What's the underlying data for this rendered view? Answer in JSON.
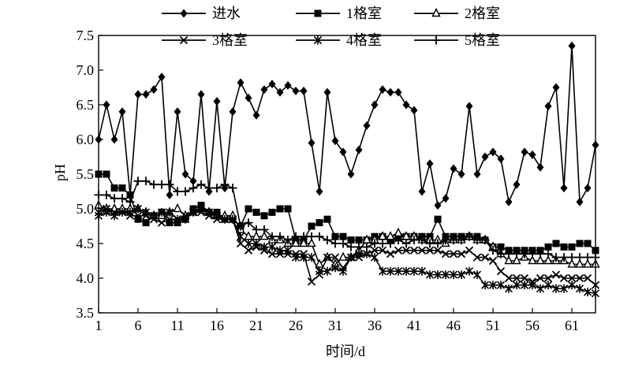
{
  "chart_data": {
    "type": "line",
    "title": "",
    "xlabel": "时间/d",
    "ylabel": "pH",
    "xlim": [
      1,
      64
    ],
    "ylim": [
      3.5,
      7.5
    ],
    "x_ticks": [
      1,
      6,
      11,
      16,
      21,
      26,
      31,
      36,
      41,
      46,
      51,
      56,
      61
    ],
    "y_ticks": [
      "3.5",
      "4.0",
      "4.5",
      "5.0",
      "5.5",
      "6.0",
      "6.5",
      "7.0",
      "7.5"
    ],
    "grid": false,
    "legend_position": "top",
    "x": [
      1,
      2,
      3,
      4,
      5,
      6,
      7,
      8,
      9,
      10,
      11,
      12,
      13,
      14,
      15,
      16,
      17,
      18,
      19,
      20,
      21,
      22,
      23,
      24,
      25,
      26,
      27,
      28,
      29,
      30,
      31,
      32,
      33,
      34,
      35,
      36,
      37,
      38,
      39,
      40,
      41,
      42,
      43,
      44,
      45,
      46,
      47,
      48,
      49,
      50,
      51,
      52,
      53,
      54,
      55,
      56,
      57,
      58,
      59,
      60,
      61,
      62,
      63,
      64
    ],
    "series": [
      {
        "name": "进水",
        "marker": "diamond",
        "values": [
          6.0,
          6.5,
          6.0,
          6.4,
          5.2,
          6.65,
          6.65,
          6.72,
          6.9,
          5.2,
          6.4,
          5.5,
          5.4,
          6.65,
          5.25,
          6.55,
          5.3,
          6.4,
          6.82,
          6.6,
          6.35,
          6.72,
          6.8,
          6.68,
          6.78,
          6.7,
          6.7,
          5.95,
          5.25,
          6.68,
          5.98,
          5.82,
          5.5,
          5.85,
          6.2,
          6.5,
          6.72,
          6.68,
          6.68,
          6.5,
          6.42,
          5.25,
          5.65,
          5.05,
          5.15,
          5.58,
          5.5,
          6.48,
          5.5,
          5.75,
          5.82,
          5.72,
          5.1,
          5.35,
          5.82,
          5.78,
          5.6,
          6.48,
          6.75,
          5.3,
          7.35,
          5.1,
          5.3,
          5.92
        ]
      },
      {
        "name": "1格室",
        "marker": "square",
        "values": [
          5.5,
          5.5,
          5.3,
          5.3,
          5.2,
          4.85,
          4.8,
          4.9,
          4.95,
          4.8,
          4.8,
          4.85,
          5.0,
          5.05,
          4.95,
          4.95,
          4.85,
          4.85,
          4.75,
          5.0,
          4.95,
          4.9,
          4.95,
          5.0,
          5.0,
          4.55,
          4.55,
          4.75,
          4.8,
          4.85,
          4.6,
          4.6,
          4.55,
          4.55,
          4.55,
          4.6,
          4.6,
          4.55,
          4.6,
          4.6,
          4.6,
          4.6,
          4.6,
          4.85,
          4.6,
          4.6,
          4.6,
          4.6,
          4.6,
          4.55,
          4.45,
          4.45,
          4.4,
          4.4,
          4.4,
          4.4,
          4.4,
          4.45,
          4.5,
          4.45,
          4.45,
          4.5,
          4.5,
          4.4
        ]
      },
      {
        "name": "2格室",
        "marker": "triangle",
        "values": [
          5.05,
          5.0,
          5.0,
          5.0,
          5.0,
          5.0,
          4.95,
          4.9,
          4.9,
          4.95,
          5.0,
          4.9,
          4.95,
          5.0,
          4.95,
          4.9,
          4.9,
          4.9,
          4.7,
          4.6,
          4.6,
          4.6,
          4.55,
          4.55,
          4.5,
          4.5,
          4.5,
          4.5,
          4.2,
          4.3,
          4.2,
          4.3,
          4.3,
          4.4,
          4.55,
          4.55,
          4.6,
          4.6,
          4.65,
          4.6,
          4.6,
          4.55,
          4.55,
          4.55,
          4.5,
          4.55,
          4.55,
          4.6,
          4.55,
          4.55,
          4.45,
          4.35,
          4.25,
          4.25,
          4.3,
          4.25,
          4.25,
          4.25,
          4.25,
          4.25,
          4.2,
          4.2,
          4.2,
          4.2
        ]
      },
      {
        "name": "3格室",
        "marker": "x",
        "values": [
          4.95,
          5.0,
          4.95,
          4.95,
          4.9,
          4.9,
          4.9,
          4.85,
          4.8,
          4.85,
          4.85,
          4.9,
          4.95,
          4.95,
          4.9,
          4.85,
          4.85,
          4.85,
          4.5,
          4.4,
          4.45,
          4.4,
          4.35,
          4.35,
          4.35,
          4.35,
          4.35,
          3.95,
          4.05,
          4.3,
          4.3,
          4.15,
          4.3,
          4.3,
          4.35,
          4.4,
          4.4,
          4.35,
          4.4,
          4.4,
          4.4,
          4.4,
          4.4,
          4.4,
          4.35,
          4.35,
          4.35,
          4.4,
          4.3,
          4.3,
          4.25,
          4.1,
          4.0,
          4.0,
          4.0,
          3.95,
          4.0,
          4.0,
          4.05,
          4.0,
          4.0,
          4.0,
          4.0,
          3.9
        ]
      },
      {
        "name": "4格室",
        "marker": "asterisk",
        "values": [
          4.9,
          4.95,
          4.9,
          4.95,
          4.95,
          5.0,
          4.95,
          4.9,
          4.95,
          4.95,
          4.85,
          4.85,
          4.95,
          5.0,
          4.95,
          4.9,
          4.85,
          4.85,
          4.6,
          4.5,
          4.5,
          4.45,
          4.45,
          4.4,
          4.4,
          4.3,
          4.3,
          4.3,
          4.1,
          4.1,
          4.15,
          4.1,
          4.3,
          4.35,
          4.35,
          4.3,
          4.1,
          4.1,
          4.1,
          4.1,
          4.1,
          4.1,
          4.05,
          4.05,
          4.05,
          4.05,
          4.05,
          4.1,
          4.05,
          3.9,
          3.9,
          3.9,
          3.85,
          3.9,
          3.9,
          3.9,
          3.85,
          3.9,
          3.85,
          3.85,
          3.9,
          3.85,
          3.8,
          3.78
        ]
      },
      {
        "name": "5格室",
        "marker": "plus",
        "values": [
          5.2,
          5.2,
          5.15,
          5.15,
          5.1,
          5.4,
          5.4,
          5.35,
          5.35,
          5.35,
          5.25,
          5.25,
          5.3,
          5.35,
          5.3,
          5.3,
          5.35,
          5.3,
          4.75,
          4.8,
          4.7,
          4.7,
          4.6,
          4.6,
          4.55,
          4.6,
          4.6,
          4.6,
          4.6,
          4.55,
          4.5,
          4.5,
          4.45,
          4.45,
          4.45,
          4.5,
          4.5,
          4.5,
          4.55,
          4.5,
          4.55,
          4.55,
          4.5,
          4.5,
          4.55,
          4.55,
          4.55,
          4.6,
          4.55,
          4.55,
          4.4,
          4.35,
          4.35,
          4.35,
          4.35,
          4.35,
          4.35,
          4.35,
          4.3,
          4.3,
          4.3,
          4.3,
          4.3,
          4.3
        ]
      }
    ]
  }
}
